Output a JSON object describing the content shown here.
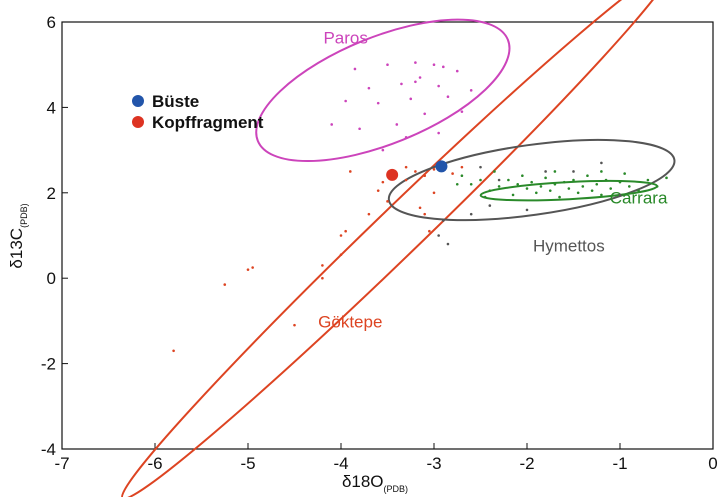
{
  "colors": {
    "paros": "#cc44bb",
    "goktepe": "#dd4422",
    "hymettos": "#555555",
    "carrara": "#2a8a2a",
    "buste": "#2255aa",
    "kopffragment": "#dd3322"
  },
  "chart_data": {
    "type": "scatter",
    "xlim": [
      -7,
      0
    ],
    "ylim": [
      -4,
      6
    ],
    "xticks": [
      "-7",
      "-6",
      "-5",
      "-4",
      "-3",
      "-2",
      "-1",
      "0"
    ],
    "yticks": [
      "-4",
      "-2",
      "0",
      "2",
      "4",
      "6"
    ],
    "xlabel": {
      "main": "δ18O",
      "sub": "(PDB)"
    },
    "ylabel": {
      "main": "δ13C",
      "sub": "(PDB)"
    },
    "grid": false,
    "legend": {
      "placement": "top-left",
      "entries": [
        {
          "label": "Büste",
          "color": "#2255aa",
          "x": -2.92,
          "y": 2.62
        },
        {
          "label": "Kopffragment",
          "color": "#dd3322",
          "x": -3.45,
          "y": 2.42
        }
      ]
    },
    "fields": [
      {
        "name": "Paros",
        "color": "#cc44bb",
        "center": [
          -3.55,
          4.4
        ],
        "semi_x": 1.45,
        "semi_y": 1.25,
        "rotation_deg": -22,
        "label_at": [
          -3.95,
          5.5
        ]
      },
      {
        "name": "Göktepe",
        "color": "#dd4422",
        "center": [
          -3.4,
          1.05
        ],
        "semi_x": 4.1,
        "semi_y": 0.55,
        "rotation_deg": -44,
        "label_at": [
          -3.9,
          -1.15
        ]
      },
      {
        "name": "Hymettos",
        "color": "#555555",
        "center": [
          -1.95,
          2.3
        ],
        "semi_x": 1.55,
        "semi_y": 0.82,
        "rotation_deg": -8,
        "label_at": [
          -1.55,
          0.62
        ]
      },
      {
        "name": "Carrara",
        "color": "#2a8a2a",
        "center": [
          -1.55,
          2.05
        ],
        "semi_x": 0.95,
        "semi_y": 0.2,
        "rotation_deg": -3,
        "label_at": [
          -0.8,
          1.75
        ]
      }
    ],
    "series": [
      {
        "name": "Paros",
        "color": "#cc44bb",
        "points": [
          [
            -3.5,
            5.0
          ],
          [
            -3.2,
            5.05
          ],
          [
            -3.0,
            5.0
          ],
          [
            -2.9,
            4.95
          ],
          [
            -3.15,
            4.7
          ],
          [
            -3.35,
            4.55
          ],
          [
            -3.7,
            4.45
          ],
          [
            -3.85,
            4.9
          ],
          [
            -2.75,
            4.85
          ],
          [
            -2.6,
            4.4
          ],
          [
            -2.85,
            4.25
          ],
          [
            -3.25,
            4.2
          ],
          [
            -3.6,
            4.1
          ],
          [
            -3.95,
            4.15
          ],
          [
            -3.1,
            3.85
          ],
          [
            -2.7,
            3.9
          ],
          [
            -3.4,
            3.6
          ],
          [
            -3.8,
            3.5
          ],
          [
            -4.1,
            3.6
          ],
          [
            -3.3,
            3.3
          ],
          [
            -2.95,
            3.4
          ],
          [
            -3.55,
            3.0
          ],
          [
            -3.2,
            4.6
          ],
          [
            -2.95,
            4.5
          ]
        ]
      },
      {
        "name": "Göktepe",
        "color": "#dd4422",
        "points": [
          [
            -5.8,
            -1.7
          ],
          [
            -5.25,
            -0.15
          ],
          [
            -5.0,
            0.2
          ],
          [
            -4.95,
            0.25
          ],
          [
            -4.5,
            -1.1
          ],
          [
            -4.2,
            0.0
          ],
          [
            -4.2,
            0.3
          ],
          [
            -4.0,
            0.55
          ],
          [
            -4.0,
            1.0
          ],
          [
            -3.95,
            1.1
          ],
          [
            -3.7,
            1.5
          ],
          [
            -3.5,
            1.8
          ],
          [
            -3.55,
            2.25
          ],
          [
            -3.3,
            2.3
          ],
          [
            -3.2,
            2.5
          ],
          [
            -3.1,
            2.4
          ],
          [
            -3.0,
            2.55
          ],
          [
            -3.1,
            1.5
          ],
          [
            -3.15,
            1.65
          ],
          [
            -3.0,
            2.0
          ],
          [
            -2.8,
            2.45
          ],
          [
            -2.7,
            2.6
          ],
          [
            -3.6,
            2.05
          ],
          [
            -3.3,
            2.6
          ],
          [
            -3.05,
            1.1
          ],
          [
            -3.9,
            2.5
          ]
        ]
      },
      {
        "name": "Hymettos",
        "color": "#555555",
        "points": [
          [
            -2.95,
            1.0
          ],
          [
            -2.9,
            1.35
          ],
          [
            -2.5,
            2.6
          ],
          [
            -2.4,
            1.7
          ],
          [
            -2.0,
            1.6
          ],
          [
            -1.5,
            2.5
          ],
          [
            -1.2,
            2.7
          ],
          [
            -1.0,
            1.95
          ],
          [
            -1.8,
            2.5
          ],
          [
            -2.6,
            1.5
          ],
          [
            -2.85,
            0.8
          ],
          [
            -2.3,
            2.3
          ]
        ]
      },
      {
        "name": "Carrara",
        "color": "#2a8a2a",
        "points": [
          [
            -2.7,
            2.4
          ],
          [
            -2.6,
            2.2
          ],
          [
            -2.5,
            2.3
          ],
          [
            -2.4,
            2.05
          ],
          [
            -2.35,
            2.5
          ],
          [
            -2.3,
            2.15
          ],
          [
            -2.2,
            2.3
          ],
          [
            -2.15,
            1.95
          ],
          [
            -2.1,
            2.2
          ],
          [
            -2.05,
            2.4
          ],
          [
            -2.0,
            2.1
          ],
          [
            -1.95,
            2.25
          ],
          [
            -1.9,
            2.0
          ],
          [
            -1.85,
            2.15
          ],
          [
            -1.8,
            2.35
          ],
          [
            -1.75,
            2.05
          ],
          [
            -1.7,
            2.2
          ],
          [
            -1.65,
            1.9
          ],
          [
            -1.6,
            2.25
          ],
          [
            -1.55,
            2.1
          ],
          [
            -1.5,
            2.3
          ],
          [
            -1.45,
            2.0
          ],
          [
            -1.4,
            2.15
          ],
          [
            -1.35,
            2.4
          ],
          [
            -1.3,
            2.05
          ],
          [
            -1.25,
            2.2
          ],
          [
            -1.2,
            1.95
          ],
          [
            -1.15,
            2.3
          ],
          [
            -1.1,
            2.1
          ],
          [
            -1.0,
            2.25
          ],
          [
            -0.9,
            2.15
          ],
          [
            -0.8,
            2.05
          ],
          [
            -0.7,
            2.3
          ],
          [
            -0.6,
            2.15
          ],
          [
            -0.5,
            2.35
          ],
          [
            -2.75,
            2.2
          ],
          [
            -2.45,
            1.9
          ],
          [
            -1.7,
            2.5
          ],
          [
            -1.2,
            2.5
          ],
          [
            -0.95,
            2.45
          ]
        ]
      }
    ]
  }
}
